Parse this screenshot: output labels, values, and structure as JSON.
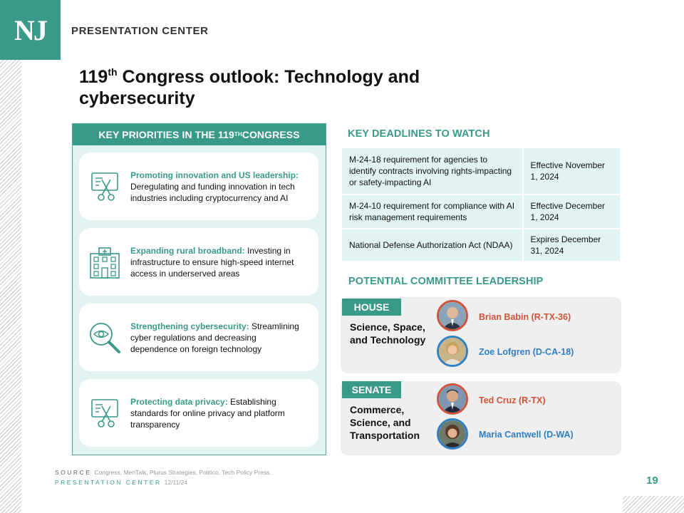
{
  "brand": {
    "logo": "NJ",
    "name": "PRESENTATION CENTER"
  },
  "title": {
    "prefix": "119",
    "sup": "th",
    "rest": " Congress outlook: Technology and cybersecurity"
  },
  "priorities": {
    "heading_prefix": "KEY PRIORITIES IN THE 119",
    "heading_sup": "TH",
    "heading_suffix": " CONGRESS",
    "items": [
      {
        "icon": "scissors-card-icon",
        "highlight": "Promoting innovation and US leadership:",
        "text": " Deregulating and funding innovation in tech industries including cryptocurrency and AI"
      },
      {
        "icon": "building-icon",
        "highlight": "Expanding rural broadband:",
        "text": " Investing in infrastructure to ensure high-speed internet access in underserved areas"
      },
      {
        "icon": "magnifier-eye-icon",
        "highlight": "Strengthening cybersecurity:",
        "text": " Streamlining cyber regulations and decreasing dependence on foreign technology"
      },
      {
        "icon": "scissors-card-icon",
        "highlight": "Protecting data privacy:",
        "text": " Establishing standards for online privacy and platform transparency"
      }
    ]
  },
  "deadlines": {
    "heading": "KEY DEADLINES TO WATCH",
    "rows": [
      {
        "item": "M-24-18 requirement for agencies to identify contracts involving rights-impacting or safety-impacting AI",
        "date": "Effective November 1, 2024"
      },
      {
        "item": "M-24-10 requirement for compliance with AI risk management requirements",
        "date": "Effective December 1, 2024"
      },
      {
        "item": "National Defense Authorization Act (NDAA)",
        "date": "Expires December 31, 2024"
      }
    ]
  },
  "leadership": {
    "heading": "POTENTIAL COMMITTEE LEADERSHIP",
    "house": {
      "tag": "HOUSE",
      "committee": "Science, Space, and Technology",
      "people": [
        {
          "name": "Brian Babin (R-TX-36)",
          "party": "rep"
        },
        {
          "name": "Zoe Lofgren (D-CA-18)",
          "party": "dem"
        }
      ]
    },
    "senate": {
      "tag": "SENATE",
      "committee": "Commerce, Science, and Transportation",
      "people": [
        {
          "name": "Ted Cruz (R-TX)",
          "party": "rep"
        },
        {
          "name": "Maria Cantwell (D-WA)",
          "party": "dem"
        }
      ]
    }
  },
  "footer": {
    "source_label": "SOURCE",
    "source_text": "Congress, MeriTalk, Plurus Strategies, Politico, Tech Policy Press.",
    "center_label": "PRESENTATION CENTER",
    "date": "12/11/24",
    "page": "19"
  },
  "colors": {
    "teal": "#3a9a8a",
    "panel_bg": "#e1f4f1",
    "republican": "#d0523a",
    "democrat": "#2f7fc4"
  }
}
